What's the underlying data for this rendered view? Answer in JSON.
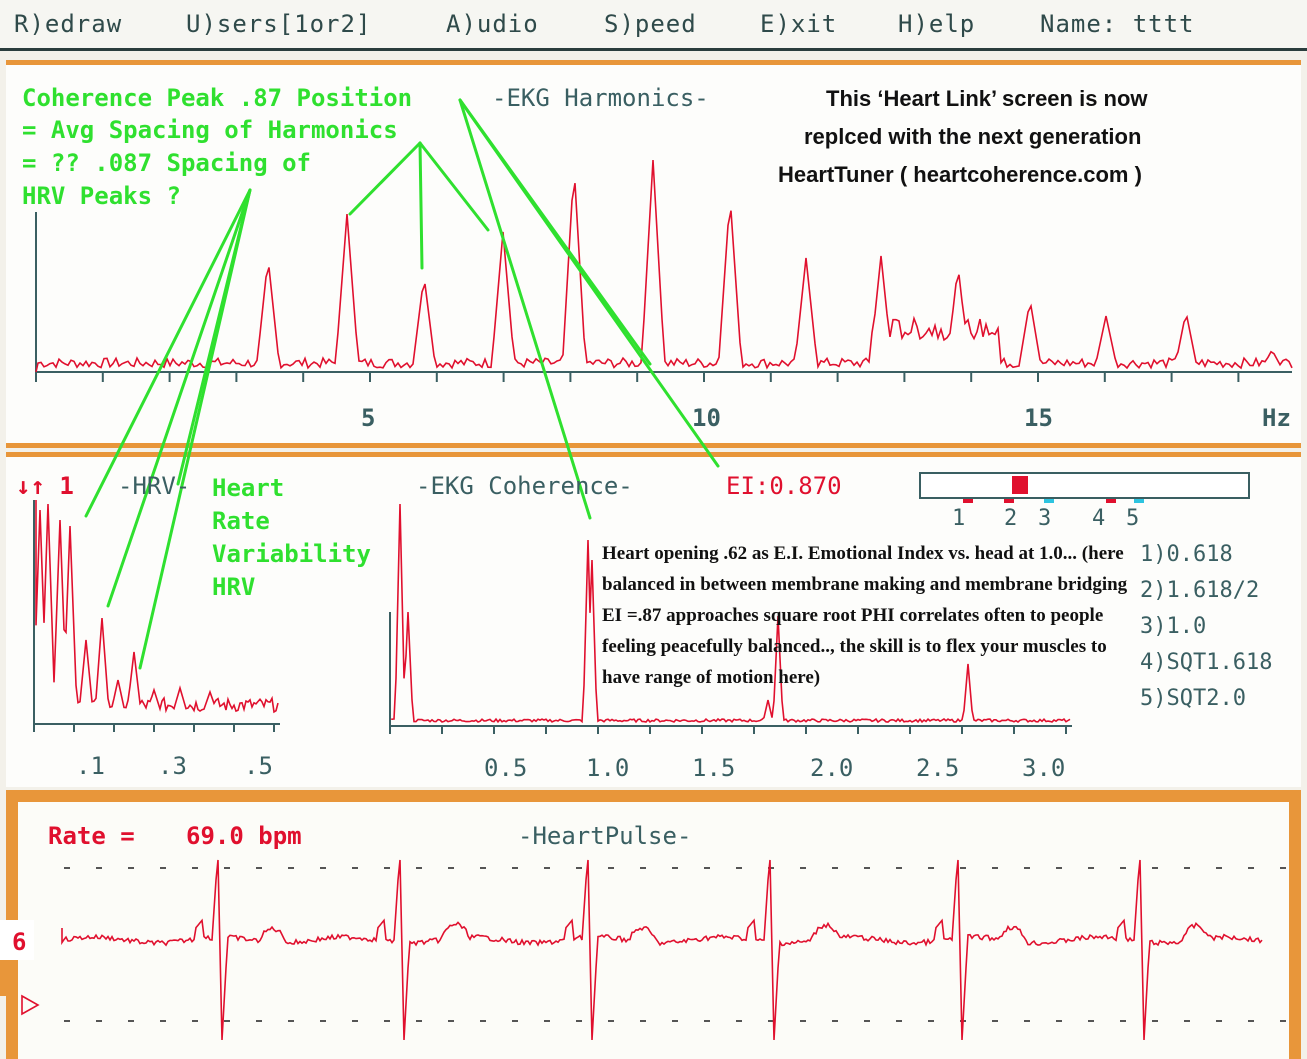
{
  "menu": {
    "redraw": "R)edraw",
    "users": "U)sers[1or2]",
    "audio": "A)udio",
    "speed": "S)peed",
    "exit": "E)xit",
    "help": "H)elp",
    "name_label": "Name: tttt"
  },
  "harmonics": {
    "title": "-EKG Harmonics-",
    "annotation": [
      "Coherence Peak .87 Position",
      "= Avg Spacing of Harmonics",
      "= ?? .087 Spacing of",
      "HRV Peaks ?"
    ],
    "notice": [
      "This ‘Heart Link’ screen is now",
      "replced with the next generation",
      "HeartTuner ( heartcoherence.com )"
    ],
    "tick_labels": [
      "5",
      "10",
      "15",
      "Hz"
    ]
  },
  "hrv": {
    "indicator": "↓↑ 1",
    "title": "-HRV-",
    "annotation": [
      "Heart",
      "Rate",
      "Variability",
      "HRV"
    ],
    "tick_labels": [
      ".1",
      ".3",
      ".5"
    ]
  },
  "coherence": {
    "title": "-EKG Coherence-",
    "ei_label": "EI:0.870",
    "tick_labels": [
      "0.5",
      "1.0",
      "1.5",
      "2.0",
      "2.5",
      "3.0"
    ],
    "note": "Heart opening .62 as E.I. Emotional Index vs. head at 1.0... (here balanced in between membrane making and membrane bridging EI =.87 approaches square root PHI correlates often to people feeling peacefully balanced.., the skill is to flex your muscles to have range of motion here)",
    "scale_markers": [
      "1",
      "2",
      "3",
      "4",
      "5"
    ],
    "references": [
      "1)0.618",
      "2)1.618/2",
      "3)1.0",
      "4)SQT1.618",
      "5)SQT2.0"
    ]
  },
  "pulse": {
    "rate_label": "Rate =",
    "rate_value": "69.0 bpm",
    "title": "-HeartPulse-",
    "side_value": "6"
  },
  "colors": {
    "trace": "#e0102e",
    "annotation_green": "#2fe02f",
    "text_teal": "#3a5f62",
    "border_orange": "#e8963a",
    "marker_cyan": "#2ec4e0"
  }
}
